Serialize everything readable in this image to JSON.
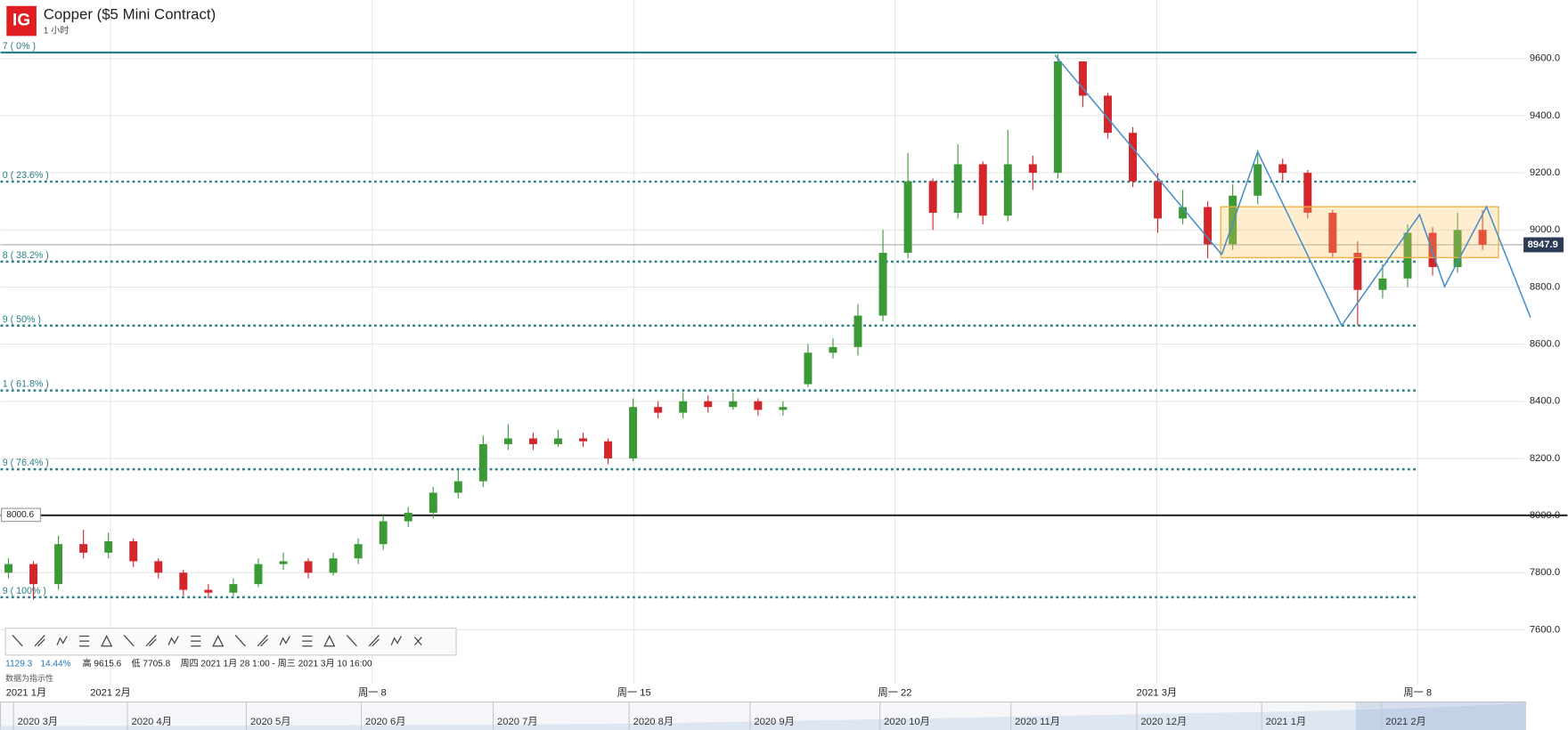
{
  "header": {
    "logo": "IG",
    "subtitle": "1 小时"
  },
  "info": {
    "change": "1129.3",
    "change_pct": "14.44%",
    "high": "高 9615.6",
    "low": "低 7705.8",
    "range": "周四 2021 1月 28 1:00 - 周三 2021 3月 10 16:00",
    "note": "数据为指示性"
  },
  "navigator": {
    "labels": [
      "2020 3月",
      "2020 4月",
      "2020 5月",
      "2020 6月",
      "2020 7月",
      "2020 8月",
      "2020 9月",
      "2020 10月",
      "2020 11月",
      "2020 12月",
      "2021 1月",
      "2021 2月"
    ]
  },
  "chart_data": {
    "type": "candlestick",
    "title": "Copper ($5 Mini Contract)",
    "up_color": "#3b9a37",
    "down_color": "#d3262b",
    "xlim": [
      -0.32,
      60.68
    ],
    "ylim": [
      7410,
      9805
    ],
    "xticks": [
      {
        "value": -0.1,
        "label": "2021 1月"
      },
      {
        "value": 4.08,
        "label": "2021 2月"
      },
      {
        "value": 14.56,
        "label": "周一 8"
      },
      {
        "value": 25.04,
        "label": "周一 15"
      },
      {
        "value": 35.48,
        "label": "周一 22"
      },
      {
        "value": 45.96,
        "label": "2021 3月"
      },
      {
        "value": 56.4,
        "label": "周一 8"
      }
    ],
    "yticks": [
      {
        "value": 7600,
        "label": "7600.0"
      },
      {
        "value": 7800,
        "label": "7800.0"
      },
      {
        "value": 8000,
        "label": "8000.0"
      },
      {
        "value": 8200,
        "label": "8200.0"
      },
      {
        "value": 8400,
        "label": "8400.0"
      },
      {
        "value": 8600,
        "label": "8600.0"
      },
      {
        "value": 8800,
        "label": "8800.0"
      },
      {
        "value": 9000,
        "label": "9000.0"
      },
      {
        "value": 9200,
        "label": "9200.0"
      },
      {
        "value": 9400,
        "label": "9400.0"
      },
      {
        "value": 9600,
        "label": "9600.0"
      }
    ],
    "grid": true,
    "open": [
      7800,
      7830,
      7760,
      7900,
      7870,
      7910,
      7840,
      7800,
      7740,
      7730,
      7760,
      7830,
      7840,
      7800,
      7850,
      7900,
      7980,
      8010,
      8080,
      8120,
      8250,
      8270,
      8250,
      8270,
      8260,
      8200,
      8380,
      8360,
      8400,
      8380,
      8400,
      8370,
      8460,
      8570,
      8590,
      8700,
      8920,
      9170,
      9060,
      9230,
      9050,
      9230,
      9200,
      9590,
      9470,
      9340,
      9170,
      9040,
      9080,
      8950,
      9120,
      9230,
      9200,
      9060,
      8920,
      8790,
      8830,
      8990,
      8870,
      9000
    ],
    "high": [
      7850,
      7840,
      7930,
      7950,
      7940,
      7920,
      7850,
      7810,
      7760,
      7780,
      7850,
      7870,
      7850,
      7870,
      7920,
      8000,
      8030,
      8100,
      8160,
      8280,
      8320,
      8290,
      8300,
      8290,
      8270,
      8410,
      8400,
      8430,
      8420,
      8430,
      8410,
      8400,
      8600,
      8620,
      8740,
      9000,
      9270,
      9180,
      9300,
      9240,
      9350,
      9260,
      9615.6,
      9580,
      9480,
      9360,
      9200,
      9140,
      9100,
      9160,
      9280,
      9250,
      9210,
      9070,
      8960,
      8880,
      9020,
      9010,
      9060,
      9070
    ],
    "low": [
      7780,
      7705.8,
      7740,
      7850,
      7850,
      7820,
      7780,
      7720,
      7710,
      7720,
      7750,
      7810,
      7780,
      7790,
      7830,
      7880,
      7960,
      7990,
      8060,
      8100,
      8230,
      8230,
      8240,
      8240,
      8180,
      8190,
      8340,
      8340,
      8360,
      8370,
      8350,
      8350,
      8450,
      8550,
      8560,
      8680,
      8900,
      9000,
      9040,
      9020,
      9030,
      9140,
      9180,
      9430,
      9320,
      9150,
      8990,
      9020,
      8900,
      8930,
      9090,
      9170,
      9040,
      8900,
      8665,
      8760,
      8800,
      8840,
      8850,
      8930
    ],
    "close": [
      7830,
      7760,
      7900,
      7870,
      7910,
      7840,
      7800,
      7740,
      7730,
      7760,
      7830,
      7840,
      7800,
      7850,
      7900,
      7980,
      8010,
      8080,
      8120,
      8250,
      8270,
      8250,
      8270,
      8260,
      8200,
      8380,
      8360,
      8400,
      8380,
      8400,
      8370,
      8380,
      8570,
      8590,
      8700,
      8920,
      9170,
      9060,
      9230,
      9050,
      9230,
      9200,
      9590,
      9470,
      9340,
      9170,
      9040,
      9080,
      8950,
      9120,
      9230,
      9200,
      9060,
      8920,
      8790,
      8830,
      8990,
      8870,
      9000,
      8948
    ],
    "fib_levels": [
      {
        "value": 9621,
        "label": "7 ( 0% )"
      },
      {
        "value": 9169,
        "label": "0 ( 23.6% )"
      },
      {
        "value": 8889,
        "label": "8 ( 38.2% )"
      },
      {
        "value": 8665,
        "label": "9 ( 50% )"
      },
      {
        "value": 8438,
        "label": "1 ( 61.8% )"
      },
      {
        "value": 8162,
        "label": "9 ( 76.4% )"
      },
      {
        "value": 7714,
        "label": "9 ( 100% )"
      }
    ],
    "price_line": 8000.6,
    "last_price": 8947.9
  }
}
